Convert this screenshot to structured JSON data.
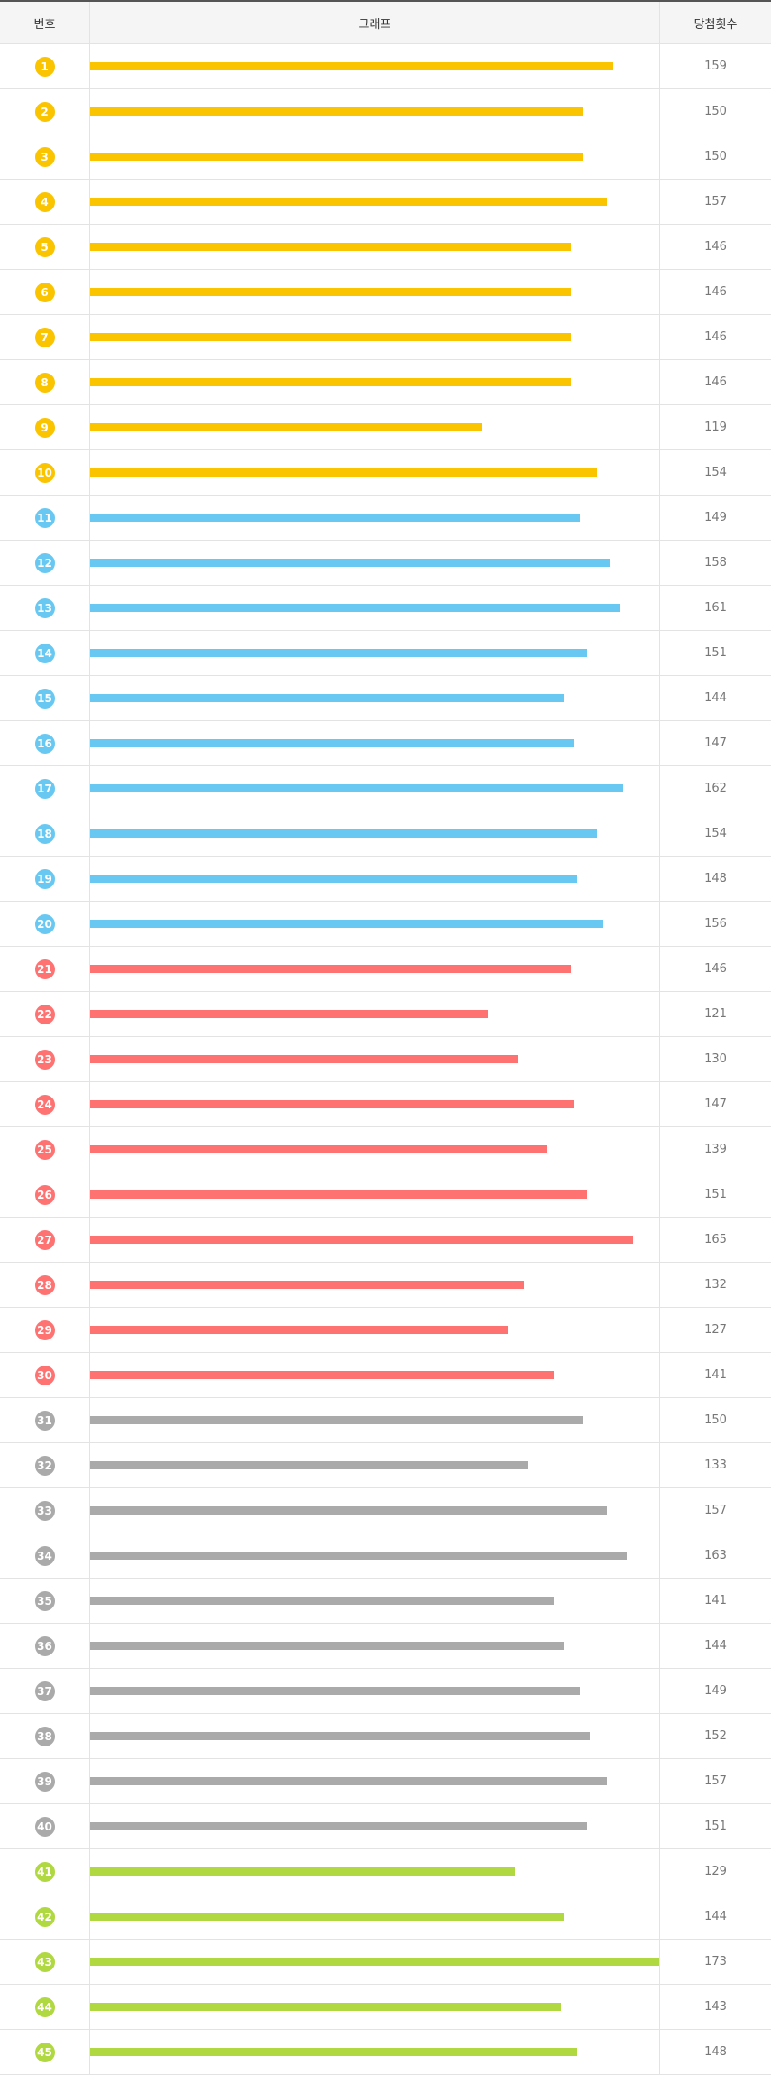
{
  "table": {
    "columns": [
      "번호",
      "그래프",
      "당첨횟수"
    ],
    "rows": [
      {
        "number": 1,
        "count": 159,
        "color": "#fbc400"
      },
      {
        "number": 2,
        "count": 150,
        "color": "#fbc400"
      },
      {
        "number": 3,
        "count": 150,
        "color": "#fbc400"
      },
      {
        "number": 4,
        "count": 157,
        "color": "#fbc400"
      },
      {
        "number": 5,
        "count": 146,
        "color": "#fbc400"
      },
      {
        "number": 6,
        "count": 146,
        "color": "#fbc400"
      },
      {
        "number": 7,
        "count": 146,
        "color": "#fbc400"
      },
      {
        "number": 8,
        "count": 146,
        "color": "#fbc400"
      },
      {
        "number": 9,
        "count": 119,
        "color": "#fbc400"
      },
      {
        "number": 10,
        "count": 154,
        "color": "#fbc400"
      },
      {
        "number": 11,
        "count": 149,
        "color": "#69c8f2"
      },
      {
        "number": 12,
        "count": 158,
        "color": "#69c8f2"
      },
      {
        "number": 13,
        "count": 161,
        "color": "#69c8f2"
      },
      {
        "number": 14,
        "count": 151,
        "color": "#69c8f2"
      },
      {
        "number": 15,
        "count": 144,
        "color": "#69c8f2"
      },
      {
        "number": 16,
        "count": 147,
        "color": "#69c8f2"
      },
      {
        "number": 17,
        "count": 162,
        "color": "#69c8f2"
      },
      {
        "number": 18,
        "count": 154,
        "color": "#69c8f2"
      },
      {
        "number": 19,
        "count": 148,
        "color": "#69c8f2"
      },
      {
        "number": 20,
        "count": 156,
        "color": "#69c8f2"
      },
      {
        "number": 21,
        "count": 146,
        "color": "#ff7272"
      },
      {
        "number": 22,
        "count": 121,
        "color": "#ff7272"
      },
      {
        "number": 23,
        "count": 130,
        "color": "#ff7272"
      },
      {
        "number": 24,
        "count": 147,
        "color": "#ff7272"
      },
      {
        "number": 25,
        "count": 139,
        "color": "#ff7272"
      },
      {
        "number": 26,
        "count": 151,
        "color": "#ff7272"
      },
      {
        "number": 27,
        "count": 165,
        "color": "#ff7272"
      },
      {
        "number": 28,
        "count": 132,
        "color": "#ff7272"
      },
      {
        "number": 29,
        "count": 127,
        "color": "#ff7272"
      },
      {
        "number": 30,
        "count": 141,
        "color": "#ff7272"
      },
      {
        "number": 31,
        "count": 150,
        "color": "#aaaaaa"
      },
      {
        "number": 32,
        "count": 133,
        "color": "#aaaaaa"
      },
      {
        "number": 33,
        "count": 157,
        "color": "#aaaaaa"
      },
      {
        "number": 34,
        "count": 163,
        "color": "#aaaaaa"
      },
      {
        "number": 35,
        "count": 141,
        "color": "#aaaaaa"
      },
      {
        "number": 36,
        "count": 144,
        "color": "#aaaaaa"
      },
      {
        "number": 37,
        "count": 149,
        "color": "#aaaaaa"
      },
      {
        "number": 38,
        "count": 152,
        "color": "#aaaaaa"
      },
      {
        "number": 39,
        "count": 157,
        "color": "#aaaaaa"
      },
      {
        "number": 40,
        "count": 151,
        "color": "#aaaaaa"
      },
      {
        "number": 41,
        "count": 129,
        "color": "#b0d840"
      },
      {
        "number": 42,
        "count": 144,
        "color": "#b0d840"
      },
      {
        "number": 43,
        "count": 173,
        "color": "#b0d840"
      },
      {
        "number": 44,
        "count": 143,
        "color": "#b0d840"
      },
      {
        "number": 45,
        "count": 148,
        "color": "#b0d840"
      }
    ]
  }
}
